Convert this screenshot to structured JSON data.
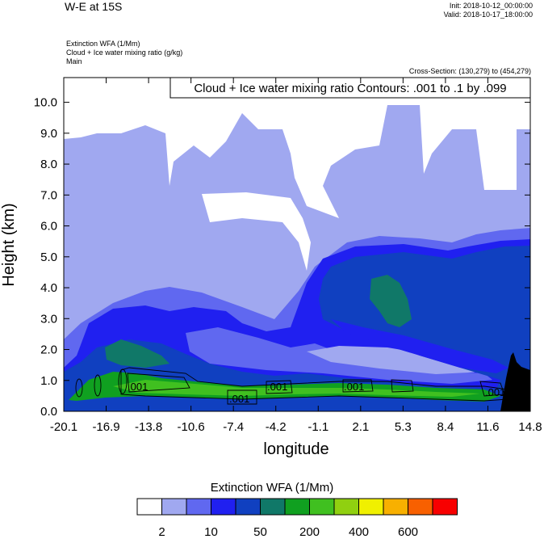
{
  "header": {
    "title": "W-E at 15S",
    "init": "Init: 2018-10-12_00:00:00",
    "valid": "Valid: 2018-10-17_18:00:00",
    "subtitle_lines": [
      "Extinction WFA   (1/Mm)",
      "Cloud + Ice water mixing ratio   (g/kg)",
      "Main"
    ],
    "cross_section": "Cross-Section: (130,279) to (454,279)"
  },
  "chart_data": {
    "type": "heatmap",
    "title": "W-E at 15S",
    "contour_label": "Cloud + Ice water mixing ratio Contours: .001 to .1 by .099",
    "xlabel": "longitude",
    "ylabel": "Height (km)",
    "x_ticks": [
      "-20.1",
      "-16.9",
      "-13.8",
      "-10.6",
      "-7.4",
      "-4.2",
      "-1.1",
      "2.1",
      "5.3",
      "8.4",
      "11.6",
      "14.8"
    ],
    "y_ticks": [
      "0.0",
      "1.0",
      "2.0",
      "3.0",
      "4.0",
      "5.0",
      "6.0",
      "7.0",
      "8.0",
      "9.0",
      "10.0"
    ],
    "xlim": [
      -20.1,
      14.8
    ],
    "ylim": [
      0,
      10.8
    ],
    "contour_values": [
      ".001",
      ".001",
      ".001",
      ".001",
      ".001",
      ".001"
    ],
    "colorbar": {
      "title": "Extinction WFA  (1/Mm)",
      "labels": [
        "2",
        "10",
        "50",
        "200",
        "400",
        "600"
      ],
      "colors": [
        "#ffffff",
        "#a0a8f0",
        "#6068f0",
        "#2020f0",
        "#1040c0",
        "#107868",
        "#10a020",
        "#40c020",
        "#90d010",
        "#f0f000",
        "#f8b000",
        "#f86000",
        "#f80000"
      ]
    },
    "fields": {
      "bg": "#a0a8f0",
      "white": "#ffffff",
      "light": "#a0a8f0",
      "mid": "#6068f0",
      "blue": "#2020f0",
      "dark": "#1040c0",
      "teal": "#107868",
      "green": "#10a020",
      "lgreen": "#40c020",
      "terrain": "#000000"
    }
  }
}
